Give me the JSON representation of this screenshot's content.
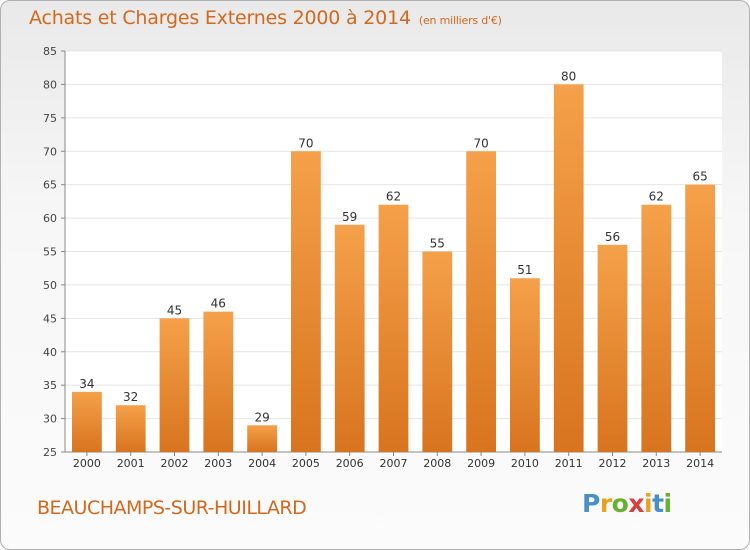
{
  "header": {
    "title": "Achats et Charges Externes 2000 à 2014",
    "subtitle": "(en milliers d'€)"
  },
  "footer": {
    "place": "BEAUCHAMPS-SUR-HUILLARD",
    "logo_letters": [
      "P",
      "r",
      "o",
      "x",
      "i",
      "t",
      "i"
    ],
    "logo_colors": [
      "#4a90c8",
      "#e8a020",
      "#66b032",
      "#d84040",
      "#e8a020",
      "#4a90c8",
      "#66b032"
    ]
  },
  "chart_data": {
    "type": "bar",
    "categories": [
      "2000",
      "2001",
      "2002",
      "2003",
      "2004",
      "2005",
      "2006",
      "2007",
      "2008",
      "2009",
      "2010",
      "2011",
      "2012",
      "2013",
      "2014"
    ],
    "values": [
      34,
      32,
      45,
      46,
      29,
      70,
      59,
      62,
      55,
      70,
      51,
      80,
      56,
      62,
      65
    ],
    "ylim": [
      25,
      85
    ],
    "yticks": [
      25,
      30,
      35,
      40,
      45,
      50,
      55,
      60,
      65,
      70,
      75,
      80,
      85
    ],
    "grid": true,
    "bar_color_light": "#f5a04a",
    "bar_color_dark": "#d8741f"
  }
}
